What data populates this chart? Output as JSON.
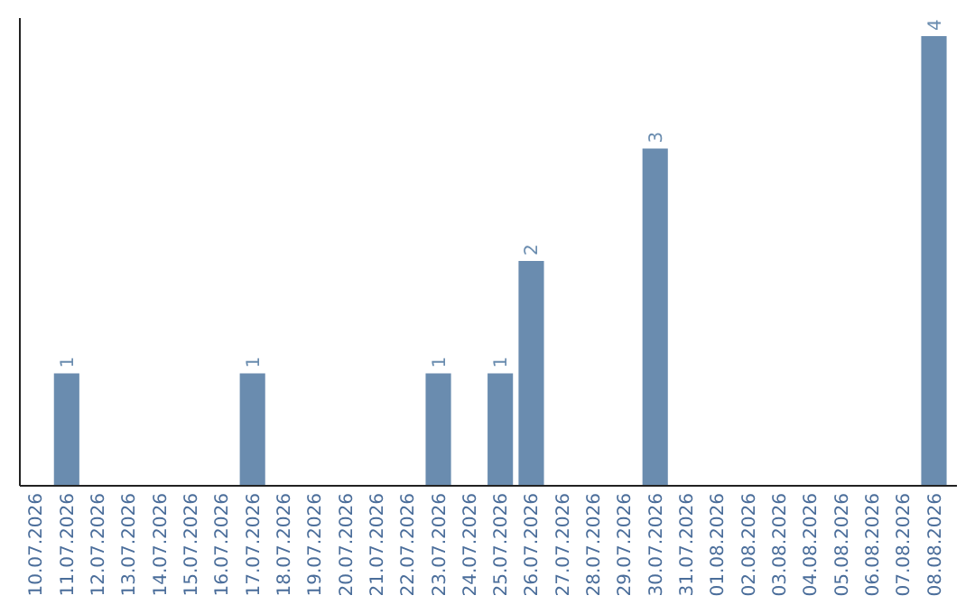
{
  "chart_data": {
    "type": "bar",
    "categories": [
      "10.07.2026",
      "11.07.2026",
      "12.07.2026",
      "13.07.2026",
      "14.07.2026",
      "15.07.2026",
      "16.07.2026",
      "17.07.2026",
      "18.07.2026",
      "19.07.2026",
      "20.07.2026",
      "21.07.2026",
      "22.07.2026",
      "23.07.2026",
      "24.07.2026",
      "25.07.2026",
      "26.07.2026",
      "27.07.2026",
      "28.07.2026",
      "29.07.2026",
      "30.07.2026",
      "31.07.2026",
      "01.08.2026",
      "02.08.2026",
      "03.08.2026",
      "04.08.2026",
      "05.08.2026",
      "06.08.2026",
      "07.08.2026",
      "08.08.2026"
    ],
    "values": [
      0,
      1,
      0,
      0,
      0,
      0,
      0,
      1,
      0,
      0,
      0,
      0,
      0,
      1,
      0,
      1,
      2,
      0,
      0,
      0,
      3,
      0,
      0,
      0,
      0,
      0,
      0,
      0,
      0,
      4
    ],
    "value_labels": [
      null,
      "1",
      null,
      null,
      null,
      null,
      null,
      "1",
      null,
      null,
      null,
      null,
      null,
      "1",
      null,
      "1",
      "2",
      null,
      null,
      null,
      "3",
      null,
      null,
      null,
      null,
      null,
      null,
      null,
      null,
      "4"
    ],
    "color": "#6a8caf",
    "tick_labels": "x"
  }
}
